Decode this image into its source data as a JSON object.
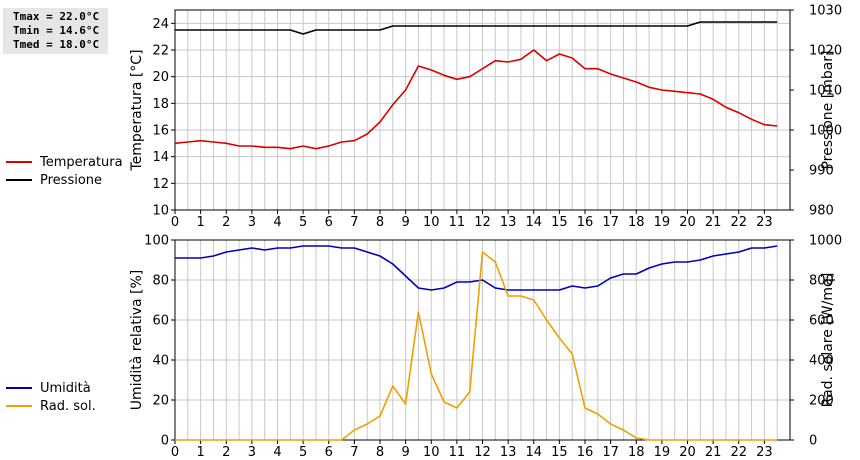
{
  "stats": {
    "tmax": "Tmax = 22.0°C",
    "tmin": "Tmin = 14.6°C",
    "tmed": "Tmed = 18.0°C"
  },
  "colors": {
    "temperatura": "#dd0000",
    "pressione": "#000000",
    "umidita": "#0000bb",
    "rad_sol": "#f0a000",
    "grid": "#c8c8c8"
  },
  "chart_data": [
    {
      "type": "line",
      "id": "top",
      "x_ticks": [
        0,
        1,
        2,
        3,
        4,
        5,
        6,
        7,
        8,
        9,
        10,
        11,
        12,
        13,
        14,
        15,
        16,
        17,
        18,
        19,
        20,
        21,
        22,
        23
      ],
      "xlim": [
        0,
        24
      ],
      "ylabel_left": "Temperatura [°C]",
      "ylim_left": [
        10,
        25
      ],
      "yticks_left": [
        10,
        12,
        14,
        16,
        18,
        20,
        22,
        24
      ],
      "ylabel_right": "Pressione [mbar]",
      "ylim_right": [
        980,
        1030
      ],
      "yticks_right": [
        980,
        990,
        1000,
        1010,
        1020,
        1030
      ],
      "grid": true,
      "legend": [
        {
          "name": "Temperatura",
          "color": "#dd0000"
        },
        {
          "name": "Pressione",
          "color": "#000000"
        }
      ],
      "series": [
        {
          "name": "Temperatura",
          "axis": "left",
          "color": "#dd0000",
          "x": [
            0,
            0.5,
            1,
            1.5,
            2,
            2.5,
            3,
            3.5,
            4,
            4.5,
            5,
            5.5,
            6,
            6.5,
            7,
            7.5,
            8,
            8.5,
            9,
            9.5,
            10,
            10.5,
            11,
            11.5,
            12,
            12.5,
            13,
            13.5,
            14,
            14.5,
            15,
            15.5,
            16,
            16.5,
            17,
            17.5,
            18,
            18.5,
            19,
            19.5,
            20,
            20.5,
            21,
            21.5,
            22,
            22.5,
            23,
            23.5
          ],
          "y": [
            15.0,
            15.1,
            15.2,
            15.1,
            15.0,
            14.8,
            14.8,
            14.7,
            14.7,
            14.6,
            14.8,
            14.6,
            14.8,
            15.1,
            15.2,
            15.7,
            16.6,
            17.9,
            19.0,
            20.8,
            20.5,
            20.1,
            19.8,
            20.0,
            20.6,
            21.2,
            21.1,
            21.3,
            22.0,
            21.2,
            21.7,
            21.4,
            20.6,
            20.6,
            20.2,
            19.9,
            19.6,
            19.2,
            19.0,
            18.9,
            18.8,
            18.7,
            18.3,
            17.7,
            17.3,
            16.8,
            16.4,
            16.3
          ]
        },
        {
          "name": "Pressione",
          "axis": "right",
          "color": "#000000",
          "x": [
            0,
            1,
            2,
            3,
            4,
            4.5,
            5,
            5.5,
            6,
            6.5,
            7,
            8,
            8.5,
            9,
            10,
            11,
            12,
            13,
            14,
            15,
            16,
            17,
            18,
            19,
            20,
            20.5,
            21,
            22,
            23,
            23.5
          ],
          "y": [
            1025,
            1025,
            1025,
            1025,
            1025,
            1025,
            1024,
            1025,
            1025,
            1025,
            1025,
            1025,
            1026,
            1026,
            1026,
            1026,
            1026,
            1026,
            1026,
            1026,
            1026,
            1026,
            1026,
            1026,
            1026,
            1027,
            1027,
            1027,
            1027,
            1027
          ]
        }
      ]
    },
    {
      "type": "line",
      "id": "bottom",
      "x_ticks": [
        0,
        1,
        2,
        3,
        4,
        5,
        6,
        7,
        8,
        9,
        10,
        11,
        12,
        13,
        14,
        15,
        16,
        17,
        18,
        19,
        20,
        21,
        22,
        23
      ],
      "xlim": [
        0,
        24
      ],
      "ylabel_left": "Umidità relativa [%]",
      "ylim_left": [
        0,
        100
      ],
      "yticks_left": [
        0,
        20,
        40,
        60,
        80,
        100
      ],
      "ylabel_right": "Rad. solare [W/mq]",
      "ylim_right": [
        0,
        1000
      ],
      "yticks_right": [
        0,
        200,
        400,
        600,
        800,
        1000
      ],
      "grid": true,
      "legend": [
        {
          "name": "Umidità",
          "color": "#0000bb"
        },
        {
          "name": "Rad. sol.",
          "color": "#f0a000"
        }
      ],
      "series": [
        {
          "name": "Umidità",
          "axis": "left",
          "color": "#0000bb",
          "x": [
            0,
            0.5,
            1,
            1.5,
            2,
            2.5,
            3,
            3.5,
            4,
            4.5,
            5,
            5.5,
            6,
            6.5,
            7,
            7.5,
            8,
            8.5,
            9,
            9.5,
            10,
            10.5,
            11,
            11.5,
            12,
            12.5,
            13,
            13.5,
            14,
            14.5,
            15,
            15.5,
            16,
            16.5,
            17,
            17.5,
            18,
            18.5,
            19,
            19.5,
            20,
            20.5,
            21,
            21.5,
            22,
            22.5,
            23,
            23.5
          ],
          "y": [
            91,
            91,
            91,
            92,
            94,
            95,
            96,
            95,
            96,
            96,
            97,
            97,
            97,
            96,
            96,
            94,
            92,
            88,
            82,
            76,
            75,
            76,
            79,
            79,
            80,
            76,
            75,
            75,
            75,
            75,
            75,
            77,
            76,
            77,
            81,
            83,
            83,
            86,
            88,
            89,
            89,
            90,
            92,
            93,
            94,
            96,
            96,
            97
          ]
        },
        {
          "name": "Rad. sol.",
          "axis": "right",
          "color": "#f0a000",
          "x": [
            0,
            1,
            2,
            3,
            4,
            5,
            6,
            6.5,
            7,
            7.5,
            8,
            8.5,
            9,
            9.5,
            10,
            10.5,
            11,
            11.5,
            12,
            12.5,
            13,
            13.5,
            14,
            14.5,
            15,
            15.5,
            16,
            16.5,
            17,
            17.5,
            18,
            18.5,
            19,
            20,
            21,
            22,
            23,
            23.5
          ],
          "y": [
            0,
            0,
            0,
            0,
            0,
            0,
            0,
            0,
            50,
            80,
            120,
            270,
            180,
            640,
            330,
            190,
            160,
            240,
            940,
            890,
            720,
            720,
            700,
            600,
            510,
            430,
            160,
            130,
            80,
            50,
            10,
            0,
            0,
            0,
            0,
            0,
            0,
            0
          ]
        }
      ]
    }
  ]
}
